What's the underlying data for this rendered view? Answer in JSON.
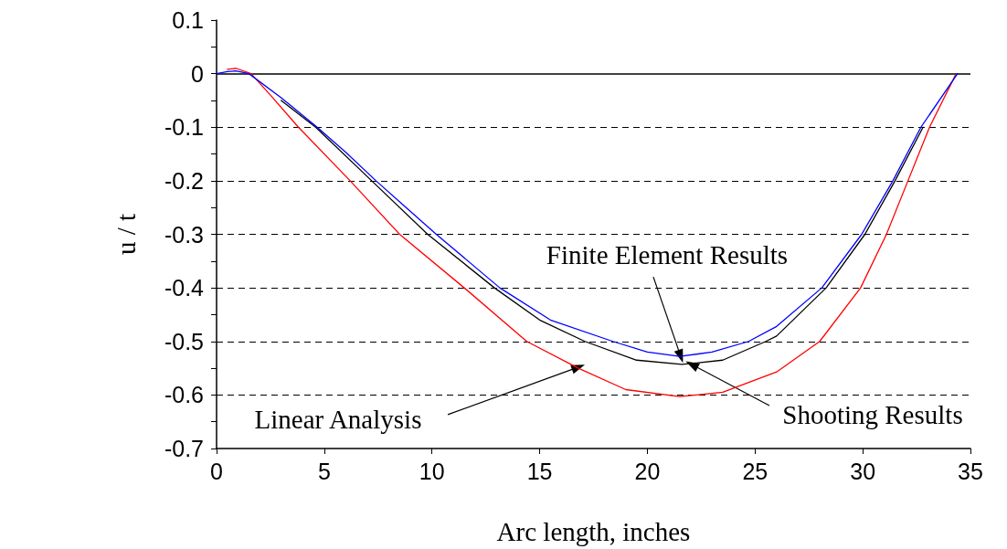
{
  "chart_data": {
    "type": "line",
    "xlabel": "Arc length, inches",
    "ylabel": "u / t",
    "xlim": [
      0,
      35
    ],
    "xticks": [
      0,
      5,
      10,
      15,
      20,
      25,
      30,
      35
    ],
    "ylim": [
      -0.7,
      0.1
    ],
    "yticks": [
      0.1,
      {
        "value": 0.05,
        "label": null
      },
      0,
      {
        "value": -0.05,
        "label": null
      },
      -0.1,
      {
        "value": -0.15,
        "label": null
      },
      -0.2,
      {
        "value": -0.25,
        "label": null
      },
      -0.3,
      {
        "value": -0.35,
        "label": null
      },
      -0.4,
      {
        "value": -0.45,
        "label": null
      },
      -0.5,
      {
        "value": -0.55,
        "label": null
      },
      -0.6,
      {
        "value": -0.65,
        "label": null
      },
      -0.7
    ],
    "grid": "y",
    "marker": "none",
    "line_style": "solid",
    "ref_lines": [
      {
        "axis": "y",
        "value": 0,
        "color": "#000000",
        "line_style": "solid"
      }
    ],
    "series": [
      {
        "color": "#000000",
        "x": [
          3,
          4.6,
          7.2,
          9.8,
          12.9,
          15,
          17.1,
          19.5,
          21.6,
          23.5,
          25.5,
          26,
          28.3,
          30.1,
          31.5,
          32.8
        ],
        "values": [
          -0.05,
          -0.1,
          -0.2,
          -0.3,
          -0.4,
          -0.46,
          -0.5,
          -0.535,
          -0.543,
          -0.535,
          -0.5,
          -0.49,
          -0.4,
          -0.3,
          -0.2,
          -0.1
        ]
      },
      {
        "color": "#ff0000",
        "x": [
          0.5,
          0.9,
          1.6,
          2.5,
          3.8,
          6.2,
          8.5,
          11.5,
          14.4,
          16.8,
          19,
          21.5,
          23.5,
          26,
          28,
          29.9,
          31.1,
          32.1,
          33.1,
          34.3
        ],
        "values": [
          0.008,
          0.01,
          0,
          -0.04,
          -0.1,
          -0.2,
          -0.3,
          -0.4,
          -0.5,
          -0.55,
          -0.59,
          -0.603,
          -0.595,
          -0.557,
          -0.5,
          -0.4,
          -0.3,
          -0.2,
          -0.1,
          -0.003
        ]
      },
      {
        "color": "#0000ff",
        "x": [
          0,
          0.5,
          0.9,
          1.5,
          3,
          4.67,
          6,
          7.4,
          8.8,
          10.2,
          13.15,
          15.5,
          18.4,
          20,
          21.5,
          23,
          24.7,
          26,
          28.1,
          29.95,
          31.4,
          32.7,
          34.4
        ],
        "values": [
          0,
          0.004,
          0.005,
          0,
          -0.045,
          -0.1,
          -0.147,
          -0.2,
          -0.25,
          -0.3,
          -0.4,
          -0.46,
          -0.5,
          -0.52,
          -0.528,
          -0.52,
          -0.5,
          -0.472,
          -0.4,
          -0.3,
          -0.2,
          -0.1,
          0
        ]
      }
    ],
    "annotations": [
      {
        "text": "Finite Element Results",
        "x": 21.55,
        "y": -0.528
      },
      {
        "text": "Shooting Results",
        "x": 22.06,
        "y": -0.543
      },
      {
        "text": "Linear Analysis",
        "x": 16.8,
        "y": -0.548
      }
    ]
  }
}
